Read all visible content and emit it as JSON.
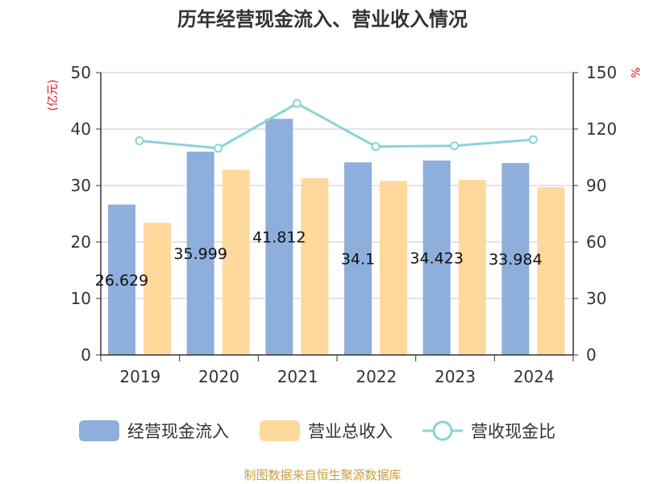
{
  "colors": {
    "bar1": "#8eaedb",
    "bar2": "#ffd99b",
    "line": "#8ad4d8",
    "unit": "#e0141e",
    "source": "#c8a040"
  },
  "chart_data": {
    "type": "bar",
    "title": "历年经营现金流入、营业收入情况",
    "categories": [
      "2019",
      "2020",
      "2021",
      "2022",
      "2023",
      "2024"
    ],
    "y_left": {
      "label": "(亿元)",
      "range": [
        0,
        50
      ],
      "ticks": [
        "0",
        "10",
        "20",
        "30",
        "40",
        "50"
      ]
    },
    "y_right": {
      "label": "%",
      "range": [
        0,
        150
      ],
      "ticks": [
        "0",
        "30",
        "60",
        "90",
        "120",
        "150"
      ]
    },
    "grid": true,
    "legend_position": "bottom",
    "series": [
      {
        "name": "经营现金流入",
        "axis": "left",
        "kind": "bar",
        "values": [
          26.629,
          35.999,
          41.812,
          34.1,
          34.423,
          33.984
        ],
        "labels": [
          "26.629",
          "35.999",
          "41.812",
          "34.1",
          "34.423",
          "33.984"
        ]
      },
      {
        "name": "营业总收入",
        "axis": "left",
        "kind": "bar",
        "values": [
          23.4,
          32.8,
          31.3,
          30.8,
          31.0,
          29.7
        ]
      },
      {
        "name": "营收现金比",
        "axis": "right",
        "kind": "line",
        "values": [
          113.8,
          109.8,
          133.6,
          110.7,
          111.1,
          114.4
        ]
      }
    ]
  },
  "source": "制图数据来自恒生聚源数据库"
}
